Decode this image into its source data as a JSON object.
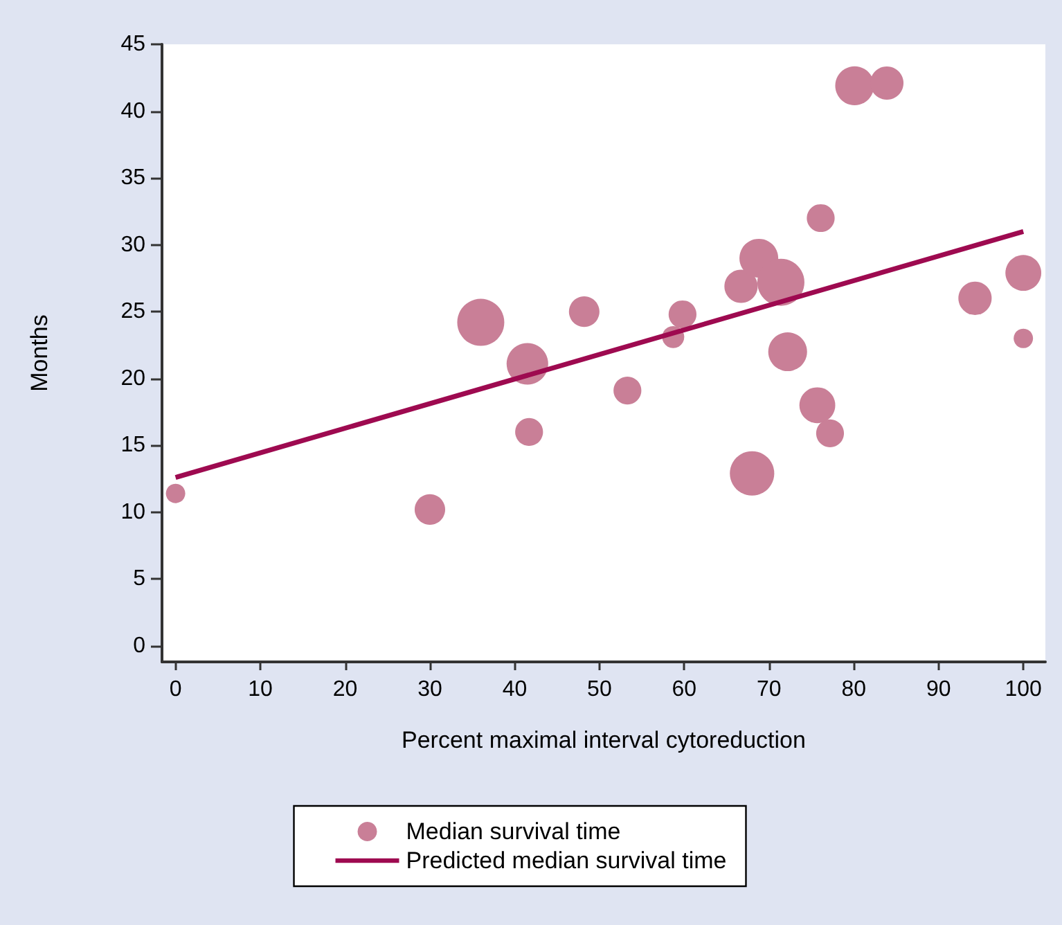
{
  "chart_data": {
    "type": "bubble",
    "xlabel": "Percent maximal interval cytoreduction",
    "ylabel": "Months",
    "xlim": [
      -1.6,
      102.6
    ],
    "xticks": [
      0,
      10,
      20,
      30,
      40,
      50,
      60,
      70,
      80,
      90,
      100
    ],
    "ylim": [
      -1.2,
      45
    ],
    "yticks": [
      0,
      5,
      10,
      15,
      20,
      25,
      30,
      35,
      40,
      45
    ],
    "grid": false,
    "legend": "bottom",
    "marker": "circle",
    "series": [
      {
        "name": "Median survival time",
        "type": "bubble",
        "color": "#c97f97",
        "x": [
          0,
          30,
          36,
          41.5,
          41.7,
          48.2,
          53.3,
          58.7,
          59.8,
          66.7,
          68.8,
          68,
          71.4,
          72.2,
          75.7,
          76.1,
          77.2,
          80.1,
          83.9,
          94.3,
          100,
          100
        ],
        "values": [
          11.4,
          10.2,
          24.2,
          21.1,
          16,
          25,
          19.1,
          23.1,
          24.8,
          26.9,
          29,
          12.9,
          27.2,
          22,
          18,
          32,
          15.9,
          41.9,
          42.1,
          26,
          27.9,
          23
        ],
        "sizes": [
          0.17,
          0.42,
          1,
          0.78,
          0.35,
          0.42,
          0.35,
          0.22,
          0.35,
          0.5,
          0.68,
          0.89,
          1,
          0.68,
          0.58,
          0.35,
          0.35,
          0.68,
          0.5,
          0.5,
          0.58,
          0.17
        ]
      },
      {
        "name": "Predicted median survival time",
        "type": "line",
        "color": "#9e0a50",
        "x": [
          0,
          100
        ],
        "values": [
          12.6,
          31
        ],
        "line_style": "solid",
        "marker": "none"
      }
    ]
  }
}
